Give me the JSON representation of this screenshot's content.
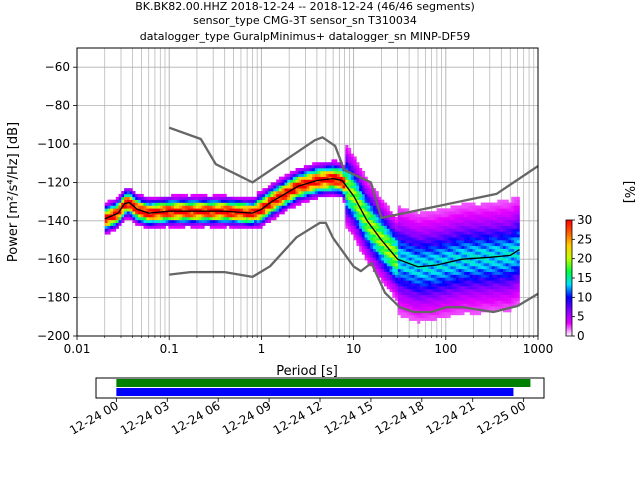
{
  "title_lines": [
    "BK.BK82.00.HHZ   2018-12-24 -- 2018-12-24  (46/46 segments)",
    "sensor_type CMG-3T sensor_sn T310034",
    "datalogger_type GuralpMinimus+ datalogger_sn MINP-DF59"
  ],
  "chart_data": [
    {
      "type": "heatmap",
      "subtype": "probabilistic-power-spectral-density",
      "xlabel": "Period [s]",
      "ylabel": "Power [m²/s⁴/Hz] [dB]",
      "x_scale": "log",
      "xlim": [
        0.01,
        1000
      ],
      "ylim": [
        -200,
        -50
      ],
      "x_ticks": [
        {
          "value": 0.01,
          "label": "0.01"
        },
        {
          "value": 0.1,
          "label": "0.1"
        },
        {
          "value": 1,
          "label": "1"
        },
        {
          "value": 10,
          "label": "10"
        },
        {
          "value": 100,
          "label": "100"
        },
        {
          "value": 1000,
          "label": "1000"
        }
      ],
      "y_ticks": [
        -60,
        -80,
        -100,
        -120,
        -140,
        -160,
        -180,
        -200
      ],
      "y_tick_labels": [
        "−60",
        "−80",
        "−100",
        "−120",
        "−140",
        "−160",
        "−180",
        "−200"
      ],
      "grid": true,
      "colorbar": {
        "label": "[%]",
        "min": 0,
        "max": 30,
        "ticks": [
          0,
          5,
          10,
          15,
          20,
          25,
          30
        ],
        "colors": [
          "#ffffff",
          "#e600ff",
          "#8000ff",
          "#0000ff",
          "#00e0ff",
          "#00ff40",
          "#c0ff00",
          "#ffd000",
          "#ff6000",
          "#ff0000"
        ]
      },
      "noise_models": [
        {
          "name": "NHNM",
          "color": "#666666",
          "points": [
            [
              0.1,
              -91.5
            ],
            [
              0.22,
              -97.4
            ],
            [
              0.32,
              -110.5
            ],
            [
              0.8,
              -120
            ],
            [
              3.8,
              -98
            ],
            [
              4.6,
              -96.5
            ],
            [
              6.3,
              -101
            ],
            [
              7.9,
              -113.5
            ],
            [
              15.4,
              -120
            ],
            [
              20,
              -138.5
            ],
            [
              354.8,
              -126
            ],
            [
              1000,
              -111.5
            ]
          ]
        },
        {
          "name": "NLNM",
          "color": "#666666",
          "points": [
            [
              0.1,
              -168
            ],
            [
              0.17,
              -166.7
            ],
            [
              0.4,
              -166.7
            ],
            [
              0.8,
              -169.2
            ],
            [
              1.24,
              -163.7
            ],
            [
              2.4,
              -148.6
            ],
            [
              4.3,
              -141.1
            ],
            [
              5,
              -141.1
            ],
            [
              6,
              -149
            ],
            [
              10,
              -163.8
            ],
            [
              12,
              -166.2
            ],
            [
              15.6,
              -162
            ],
            [
              21.9,
              -177.5
            ],
            [
              31.6,
              -185
            ],
            [
              45,
              -187.5
            ],
            [
              70,
              -187.5
            ],
            [
              101,
              -185
            ],
            [
              154,
              -185
            ],
            [
              328,
              -187.5
            ],
            [
              600,
              -184.4
            ],
            [
              1000,
              -178
            ]
          ]
        }
      ],
      "mode_line": {
        "color": "#000000",
        "points": [
          [
            0.02,
            -139
          ],
          [
            0.028,
            -136
          ],
          [
            0.033,
            -131
          ],
          [
            0.037,
            -130.5
          ],
          [
            0.045,
            -134
          ],
          [
            0.06,
            -136
          ],
          [
            0.1,
            -135
          ],
          [
            0.2,
            -135
          ],
          [
            0.4,
            -135
          ],
          [
            0.8,
            -136
          ],
          [
            1,
            -134
          ],
          [
            1.3,
            -130
          ],
          [
            1.8,
            -126
          ],
          [
            2.5,
            -122
          ],
          [
            4,
            -119
          ],
          [
            6,
            -118
          ],
          [
            7.5,
            -119
          ],
          [
            10,
            -127
          ],
          [
            14,
            -140
          ],
          [
            20,
            -150
          ],
          [
            30,
            -160
          ],
          [
            50,
            -164
          ],
          [
            80,
            -163
          ],
          [
            150,
            -160
          ],
          [
            300,
            -159
          ],
          [
            500,
            -158
          ],
          [
            630,
            -155
          ]
        ]
      },
      "density_band": {
        "x_start": 0.02,
        "x_end": 630
      }
    },
    {
      "type": "timeline",
      "tick_labels": [
        "12-24 00",
        "12-24 03",
        "12-24 06",
        "12-24 09",
        "12-24 12",
        "12-24 15",
        "12-24 18",
        "12-24 21",
        "12-25 00"
      ],
      "tick_hours": [
        0,
        3,
        6,
        9,
        12,
        15,
        18,
        21,
        24
      ],
      "xlim_hours": [
        -1.2,
        25.2
      ],
      "bars": [
        {
          "color": "#008000",
          "start_hour": 0,
          "end_hour": 24.4
        },
        {
          "color": "#0000ff",
          "start_hour": 0,
          "end_hour": 23.4
        }
      ]
    }
  ]
}
